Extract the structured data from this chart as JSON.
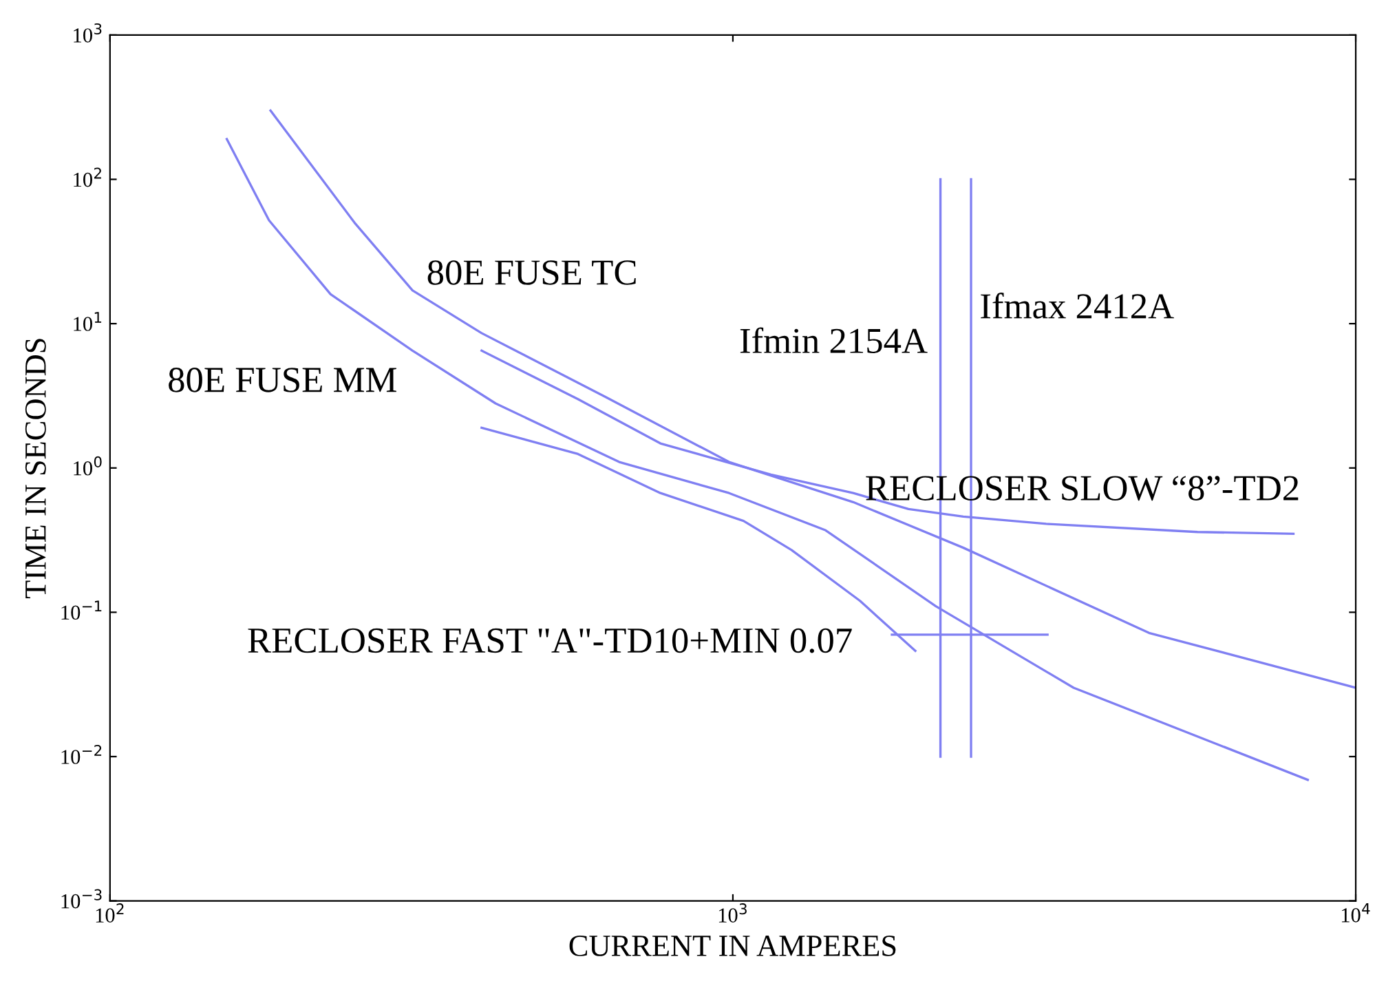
{
  "chart_data": {
    "type": "line",
    "xlabel": "CURRENT IN AMPERES",
    "ylabel": "TIME IN SECONDS",
    "log": "xy",
    "xlim": [
      100,
      10000
    ],
    "ylim": [
      0.001,
      1000
    ],
    "xticks": [
      {
        "value": 100,
        "label": "10$^{2}$"
      },
      {
        "value": 1000,
        "label": "10$^{3}$"
      },
      {
        "value": 10000,
        "label": "10$^{4}$"
      }
    ],
    "yticks": [
      {
        "value": 0.001,
        "label": "10$^{−3}$"
      },
      {
        "value": 0.01,
        "label": "10$^{−2}$"
      },
      {
        "value": 0.1,
        "label": "10$^{−1}$"
      },
      {
        "value": 1,
        "label": "10$^{0}$"
      },
      {
        "value": 10,
        "label": "10$^{1}$"
      },
      {
        "value": 100,
        "label": "10$^{2}$"
      },
      {
        "value": 1000,
        "label": "10$^{3}$"
      }
    ],
    "grid": false,
    "legend": false,
    "marker": "none",
    "line_style": "solid",
    "series": [
      {
        "name": "80E FUSE TC",
        "color": "#7f7ff2",
        "x": [
          181,
          247,
          306,
          395,
          625,
          986,
          1560,
          2344,
          4656,
          10000
        ],
        "values": [
          300,
          50,
          17,
          8.6,
          3.1,
          1.1,
          0.58,
          0.28,
          0.072,
          0.03
        ]
      },
      {
        "name": "80E FUSE MM",
        "color": "#7f7ff2",
        "x": [
          154,
          180,
          226,
          306,
          416,
          657,
          986,
          1409,
          2118,
          3524,
          8375
        ],
        "values": [
          190,
          52,
          16,
          6.5,
          2.8,
          1.1,
          0.67,
          0.37,
          0.11,
          0.03,
          0.0069
        ]
      },
      {
        "name": "RECLOSER SLOW “8”-TD2",
        "color": "#7f7ff2",
        "x": [
          395,
          564,
          765,
          1151,
          1560,
          1914,
          2344,
          3184,
          5572,
          7943
        ],
        "values": [
          6.5,
          3.0,
          1.48,
          0.9,
          0.67,
          0.52,
          0.46,
          0.41,
          0.36,
          0.35
        ]
      },
      {
        "color": "#7f7ff2",
        "x": [
          395,
          564,
          765,
          1040,
          1242,
          1600,
          1963
        ],
        "values": [
          1.9,
          1.25,
          0.67,
          0.43,
          0.27,
          0.12,
          0.054
        ]
      },
      {
        "name": "RECLOSER FAST \"A\"-TD10+MIN 0.07",
        "color": "#7f7ff2",
        "x": [
          1800,
          3200
        ],
        "values": [
          0.07,
          0.07
        ]
      },
      {
        "name": "Ifmin 2154A",
        "color": "#7f7ff2",
        "x": [
          2154,
          2154
        ],
        "values": [
          0.01,
          100
        ]
      },
      {
        "name": "Ifmax 2412A",
        "color": "#7f7ff2",
        "x": [
          2412,
          2412
        ],
        "values": [
          0.01,
          100
        ]
      }
    ]
  }
}
